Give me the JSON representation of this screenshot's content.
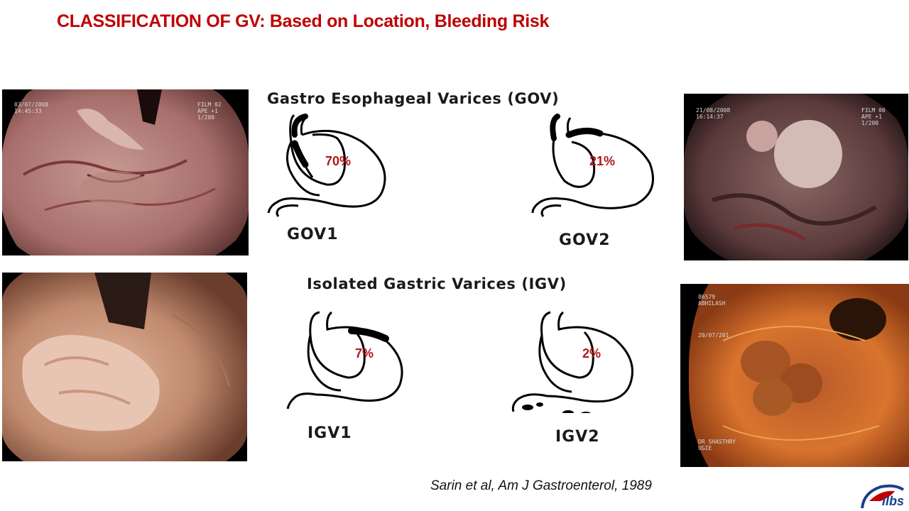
{
  "slide": {
    "title": "CLASSIFICATION OF GV:  Based on Location, Bleeding Risk",
    "citation": "Sarin et al, Am J Gastroenterol,  1989",
    "logo_text": "ilbs"
  },
  "gov_section": {
    "heading": "Gastro Esophageal Varices (GOV)",
    "types": [
      {
        "label": "GOV1",
        "percent": "70%"
      },
      {
        "label": "GOV2",
        "percent": "21%"
      }
    ]
  },
  "igv_section": {
    "heading": "Isolated Gastric Varices (IGV)",
    "types": [
      {
        "label": "IGV1",
        "percent": "7%"
      },
      {
        "label": "IGV2",
        "percent": "2%"
      }
    ]
  },
  "photos": {
    "top_left": {
      "overlay_left": "03/07/2008\n14:45:33",
      "overlay_right": "FILM 02\nAPE +1\n1/200"
    },
    "top_right": {
      "overlay_left": "21/08/2008\n16:14:37",
      "overlay_right": "FILM 00\nAPE +1\n1/200"
    },
    "bottom_right": {
      "overlay_top": "86579\nABHILASH",
      "overlay_mid": "20/07/201",
      "overlay_bottom": "DR SHASTHRY\nUGIE"
    }
  },
  "colors": {
    "title": "#c00000",
    "percent": "#b01818",
    "logo": "#1b3f8f"
  }
}
